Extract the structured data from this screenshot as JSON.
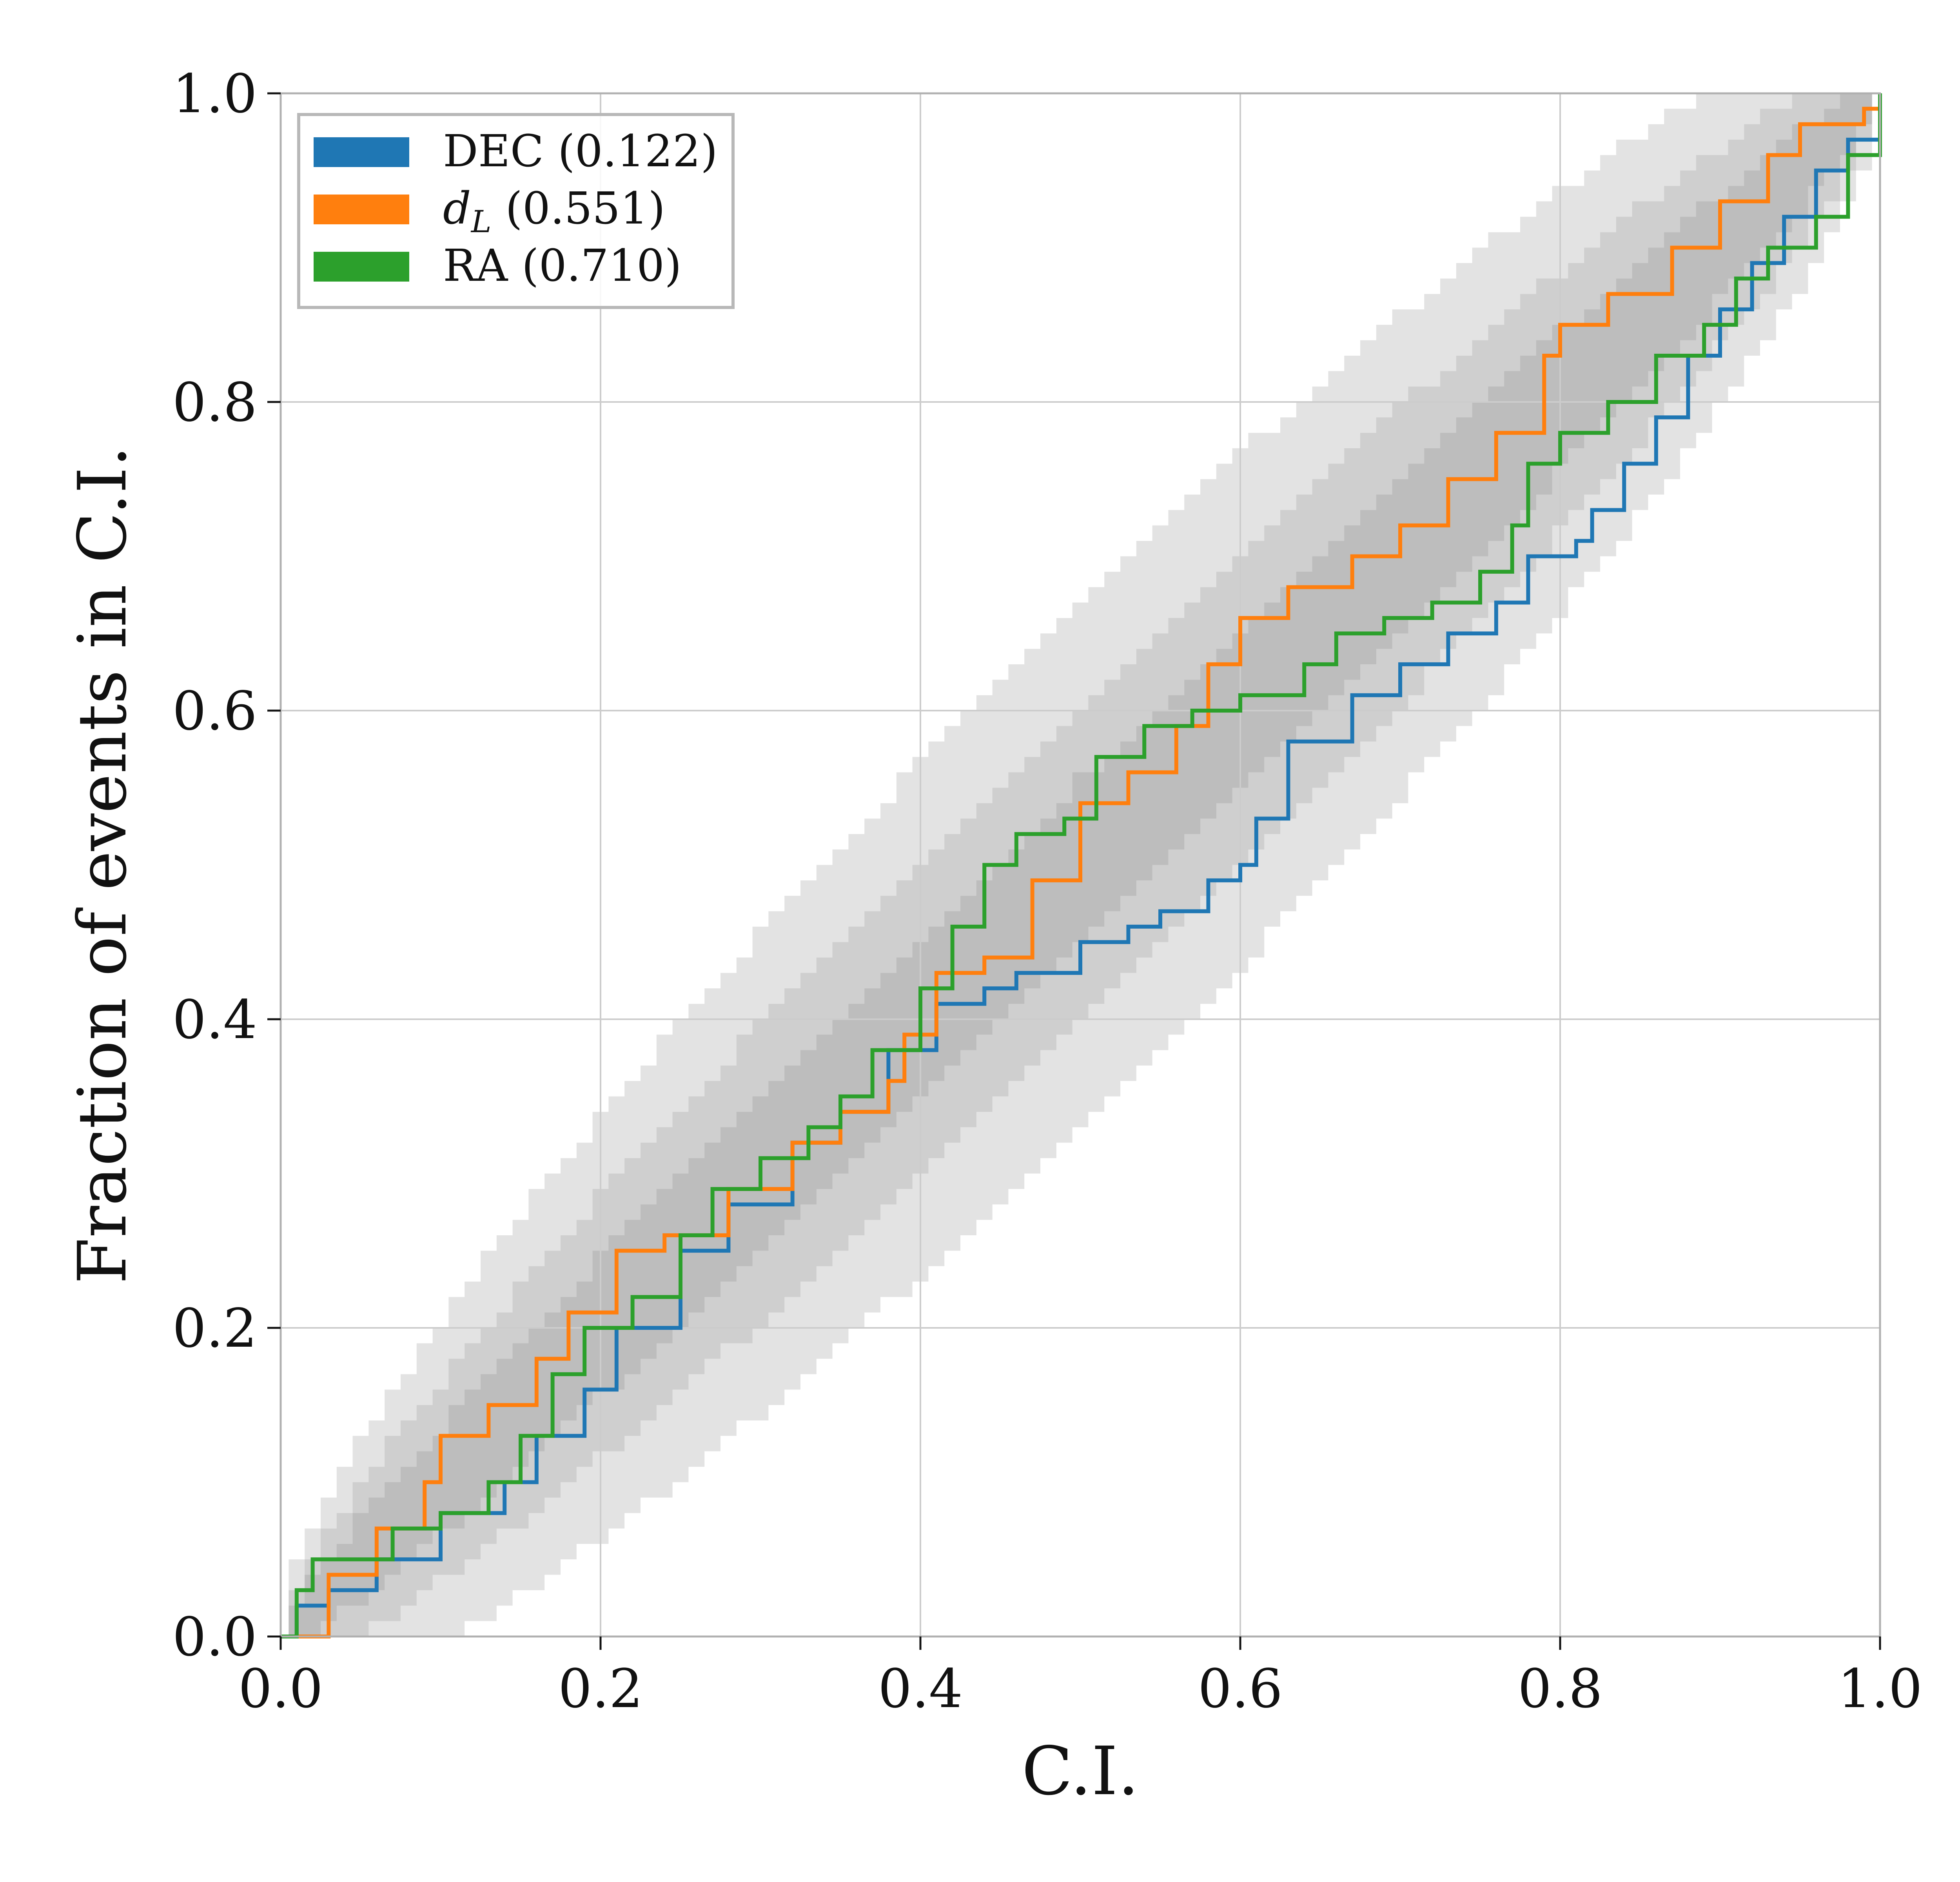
{
  "chart_data": {
    "type": "line",
    "title": "",
    "xlabel": "C.I.",
    "ylabel": "Fraction of events in C.I.",
    "xlim": [
      0.0,
      1.0
    ],
    "ylim": [
      0.0,
      1.0
    ],
    "xticks": [
      "0.0",
      "0.2",
      "0.4",
      "0.6",
      "0.8",
      "1.0"
    ],
    "yticks": [
      "0.0",
      "0.2",
      "0.4",
      "0.6",
      "0.8",
      "1.0"
    ],
    "grid": true,
    "legend_position": "top-left",
    "confidence_bands": [
      {
        "level": "outer",
        "color": "#e3e3e3"
      },
      {
        "level": "middle",
        "color": "#cfcfcf"
      },
      {
        "level": "inner",
        "color": "#bdbdbd"
      }
    ],
    "series": [
      {
        "name": "DEC (0.122)",
        "color": "#1f77b4",
        "points": [
          [
            0.0,
            0.0
          ],
          [
            0.01,
            0.02
          ],
          [
            0.03,
            0.03
          ],
          [
            0.06,
            0.05
          ],
          [
            0.1,
            0.08
          ],
          [
            0.14,
            0.1
          ],
          [
            0.16,
            0.13
          ],
          [
            0.19,
            0.16
          ],
          [
            0.21,
            0.2
          ],
          [
            0.25,
            0.25
          ],
          [
            0.28,
            0.28
          ],
          [
            0.32,
            0.32
          ],
          [
            0.35,
            0.34
          ],
          [
            0.38,
            0.38
          ],
          [
            0.41,
            0.41
          ],
          [
            0.44,
            0.42
          ],
          [
            0.46,
            0.43
          ],
          [
            0.5,
            0.45
          ],
          [
            0.53,
            0.46
          ],
          [
            0.55,
            0.47
          ],
          [
            0.58,
            0.49
          ],
          [
            0.6,
            0.5
          ],
          [
            0.61,
            0.53
          ],
          [
            0.63,
            0.58
          ],
          [
            0.67,
            0.61
          ],
          [
            0.7,
            0.63
          ],
          [
            0.73,
            0.65
          ],
          [
            0.76,
            0.67
          ],
          [
            0.78,
            0.7
          ],
          [
            0.81,
            0.71
          ],
          [
            0.82,
            0.73
          ],
          [
            0.84,
            0.76
          ],
          [
            0.86,
            0.79
          ],
          [
            0.88,
            0.83
          ],
          [
            0.9,
            0.86
          ],
          [
            0.92,
            0.89
          ],
          [
            0.94,
            0.92
          ],
          [
            0.96,
            0.95
          ],
          [
            0.98,
            0.97
          ],
          [
            1.0,
            1.0
          ]
        ]
      },
      {
        "name": "d_L (0.551)",
        "legend_main": "d",
        "legend_sub": "L",
        "legend_suffix": " (0.551)",
        "color": "#ff7f0e",
        "points": [
          [
            0.0,
            0.0
          ],
          [
            0.03,
            0.04
          ],
          [
            0.06,
            0.07
          ],
          [
            0.09,
            0.1
          ],
          [
            0.1,
            0.13
          ],
          [
            0.13,
            0.15
          ],
          [
            0.16,
            0.18
          ],
          [
            0.18,
            0.21
          ],
          [
            0.21,
            0.25
          ],
          [
            0.24,
            0.26
          ],
          [
            0.28,
            0.29
          ],
          [
            0.32,
            0.32
          ],
          [
            0.35,
            0.34
          ],
          [
            0.38,
            0.36
          ],
          [
            0.39,
            0.39
          ],
          [
            0.41,
            0.43
          ],
          [
            0.44,
            0.44
          ],
          [
            0.47,
            0.49
          ],
          [
            0.5,
            0.54
          ],
          [
            0.53,
            0.56
          ],
          [
            0.56,
            0.59
          ],
          [
            0.58,
            0.63
          ],
          [
            0.6,
            0.66
          ],
          [
            0.63,
            0.68
          ],
          [
            0.67,
            0.7
          ],
          [
            0.7,
            0.72
          ],
          [
            0.73,
            0.75
          ],
          [
            0.76,
            0.78
          ],
          [
            0.79,
            0.83
          ],
          [
            0.8,
            0.85
          ],
          [
            0.83,
            0.87
          ],
          [
            0.87,
            0.9
          ],
          [
            0.9,
            0.93
          ],
          [
            0.93,
            0.96
          ],
          [
            0.95,
            0.98
          ],
          [
            0.99,
            0.99
          ],
          [
            1.0,
            1.0
          ]
        ]
      },
      {
        "name": "RA (0.710)",
        "color": "#2ca02c",
        "points": [
          [
            0.0,
            0.0
          ],
          [
            0.01,
            0.03
          ],
          [
            0.02,
            0.05
          ],
          [
            0.07,
            0.07
          ],
          [
            0.1,
            0.08
          ],
          [
            0.13,
            0.1
          ],
          [
            0.15,
            0.13
          ],
          [
            0.17,
            0.17
          ],
          [
            0.19,
            0.2
          ],
          [
            0.22,
            0.22
          ],
          [
            0.25,
            0.26
          ],
          [
            0.27,
            0.29
          ],
          [
            0.3,
            0.31
          ],
          [
            0.33,
            0.33
          ],
          [
            0.35,
            0.35
          ],
          [
            0.37,
            0.38
          ],
          [
            0.4,
            0.42
          ],
          [
            0.42,
            0.46
          ],
          [
            0.44,
            0.5
          ],
          [
            0.46,
            0.52
          ],
          [
            0.49,
            0.53
          ],
          [
            0.51,
            0.57
          ],
          [
            0.54,
            0.59
          ],
          [
            0.57,
            0.6
          ],
          [
            0.6,
            0.61
          ],
          [
            0.64,
            0.63
          ],
          [
            0.66,
            0.65
          ],
          [
            0.69,
            0.66
          ],
          [
            0.72,
            0.67
          ],
          [
            0.75,
            0.69
          ],
          [
            0.77,
            0.72
          ],
          [
            0.78,
            0.76
          ],
          [
            0.8,
            0.78
          ],
          [
            0.83,
            0.8
          ],
          [
            0.86,
            0.83
          ],
          [
            0.89,
            0.85
          ],
          [
            0.91,
            0.88
          ],
          [
            0.93,
            0.9
          ],
          [
            0.96,
            0.92
          ],
          [
            0.98,
            0.96
          ],
          [
            1.0,
            1.0
          ]
        ]
      }
    ]
  }
}
